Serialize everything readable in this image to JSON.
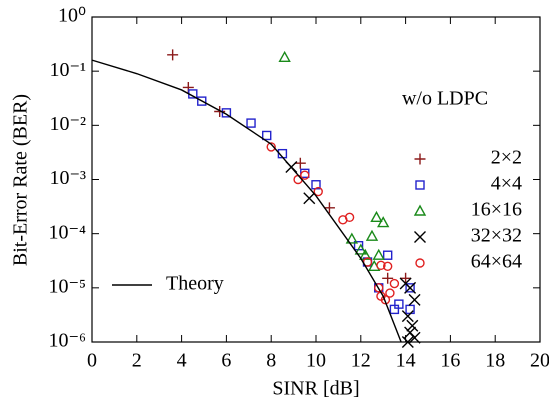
{
  "chart_data": {
    "type": "scatter",
    "xlabel": "SINR [dB]",
    "ylabel": "Bit-Error Rate (BER)",
    "legend_title": "w/o LDPC",
    "xlim": [
      0,
      20
    ],
    "xticks": [
      0,
      2,
      4,
      6,
      8,
      10,
      12,
      14,
      16,
      18,
      20
    ],
    "ylim": [
      1e-06,
      1
    ],
    "ylog": true,
    "yticks": [
      {
        "value": 1,
        "label": "10⁰"
      },
      {
        "value": 0.1,
        "label": "10⁻¹"
      },
      {
        "value": 0.01,
        "label": "10⁻²"
      },
      {
        "value": 0.001,
        "label": "10⁻³"
      },
      {
        "value": 0.0001,
        "label": "10⁻⁴"
      },
      {
        "value": 1e-05,
        "label": "10⁻⁵"
      },
      {
        "value": 1e-06,
        "label": "10⁻⁶"
      }
    ],
    "series": [
      {
        "name": "2×2",
        "color": "#8b1a1a",
        "marker": "plus",
        "x": [
          3.6,
          4.3,
          5.7,
          9.3,
          10.6,
          13.2,
          14.0
        ],
        "values": [
          0.2,
          0.05,
          0.018,
          0.002,
          0.0003,
          1.5e-05,
          1.5e-05
        ]
      },
      {
        "name": "4×4",
        "color": "#2222cc",
        "marker": "square",
        "x": [
          4.5,
          4.9,
          6.0,
          7.1,
          7.8,
          8.5,
          9.5,
          10.0,
          11.9,
          12.3,
          12.8,
          13.2,
          13.5,
          13.7,
          14.2,
          14.2
        ],
        "values": [
          0.038,
          0.028,
          0.017,
          0.011,
          0.0065,
          0.003,
          0.0013,
          0.0008,
          6e-05,
          3e-05,
          1e-05,
          4e-05,
          4e-06,
          5e-06,
          1e-05,
          4e-06
        ]
      },
      {
        "name": "16×16",
        "color": "#1a8a1a",
        "marker": "triangle",
        "x": [
          8.6,
          11.6,
          12.0,
          12.2,
          12.5,
          12.7,
          13.0,
          12.6,
          12.8
        ],
        "values": [
          0.18,
          8e-05,
          5e-05,
          4e-05,
          9e-05,
          0.0002,
          0.00016,
          2.5e-05,
          4e-05
        ]
      },
      {
        "name": "32×32",
        "color": "#000000",
        "marker": "cross",
        "x": [
          8.9,
          9.7,
          14.0,
          14.2,
          14.4,
          14.1,
          14.3,
          14.2,
          14.4,
          14.1
        ],
        "values": [
          0.0017,
          0.00045,
          1.2e-05,
          1e-05,
          6e-06,
          3e-06,
          2e-06,
          1.5e-06,
          1.2e-06,
          1e-06
        ]
      },
      {
        "name": "64×64",
        "color": "#e02020",
        "marker": "circle",
        "x": [
          8.0,
          9.2,
          9.5,
          10.1,
          11.2,
          11.5,
          12.3,
          12.8,
          12.9,
          13.1,
          13.3,
          13.5,
          13.2,
          12.9
        ],
        "values": [
          0.004,
          0.001,
          0.0012,
          0.0006,
          0.00018,
          0.0002,
          3e-05,
          1e-05,
          7e-06,
          6e-06,
          8e-06,
          1.2e-05,
          2.5e-05,
          2.6e-05
        ]
      },
      {
        "name": "Theory",
        "color": "#000000",
        "marker": "line",
        "x": [
          0,
          2,
          4,
          6,
          8,
          10,
          12,
          13,
          13.8
        ],
        "values": [
          0.16,
          0.09,
          0.045,
          0.016,
          0.0045,
          0.0005,
          3.5e-05,
          7e-06,
          1e-06
        ]
      }
    ]
  }
}
